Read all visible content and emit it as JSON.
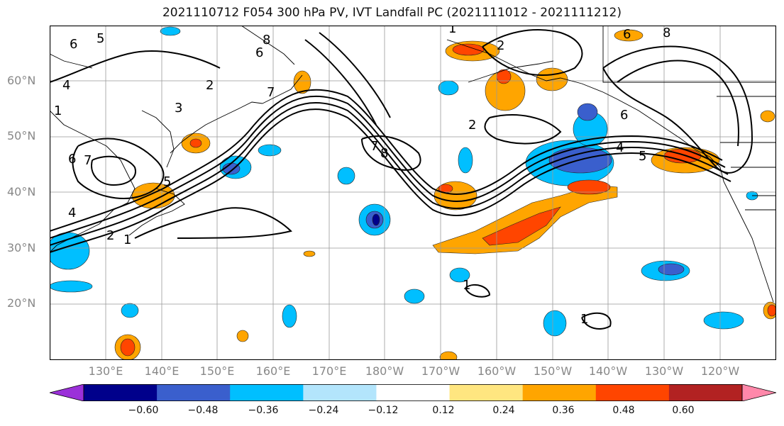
{
  "title": "2021110712 F054 300 hPa PV, IVT Landfall PC (2021111012 - 2021111212)",
  "lat_labels": [
    "60°N",
    "50°N",
    "40°N",
    "30°N",
    "20°N"
  ],
  "lon_labels": [
    "130°E",
    "140°E",
    "150°E",
    "160°E",
    "170°E",
    "180°W",
    "170°W",
    "160°W",
    "150°W",
    "140°W",
    "130°W",
    "120°W"
  ],
  "colorbar": {
    "ticks": [
      "−0.60",
      "−0.48",
      "−0.36",
      "−0.24",
      "−0.12",
      "0.12",
      "0.24",
      "0.36",
      "0.48",
      "0.60"
    ],
    "colors": [
      "#9b30d9",
      "#00008b",
      "#3a5fcd",
      "#00bfff",
      "#b3e5fc",
      "#ffffff",
      "#ffe680",
      "#ffa500",
      "#ff4500",
      "#b22222",
      "#ff88aa"
    ]
  },
  "contour_labels": [
    "6",
    "5",
    "4",
    "6",
    "7",
    "4",
    "2",
    "1",
    "1",
    "6",
    "8",
    "7",
    "8",
    "2",
    "7",
    "6",
    "5",
    "2",
    "1",
    "6",
    "8",
    "5",
    "4",
    "3",
    "2",
    "1",
    "1"
  ]
}
